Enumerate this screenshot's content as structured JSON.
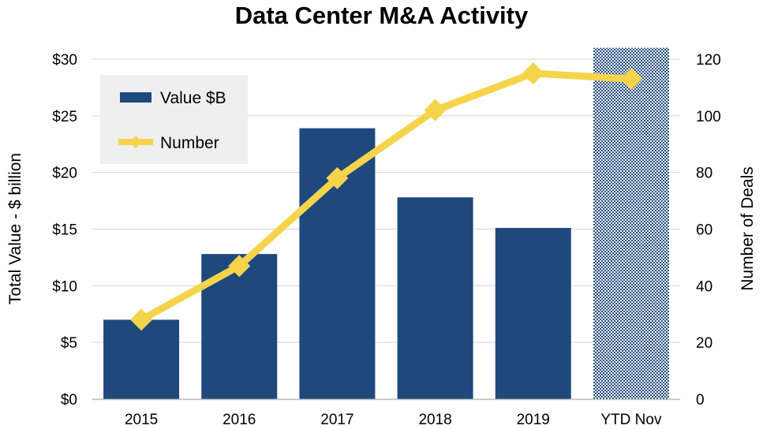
{
  "chart_data": {
    "type": "bar",
    "title": "Data Center M&A Activity",
    "categories": [
      "2015",
      "2016",
      "2017",
      "2018",
      "2019",
      "YTD Nov"
    ],
    "series": [
      {
        "name": "Value $B",
        "type": "bar",
        "axis": "left",
        "values": [
          7.0,
          12.8,
          23.9,
          17.8,
          15.1,
          31.0
        ],
        "color": "#1f497d",
        "hatched_categories": [
          "YTD Nov"
        ]
      },
      {
        "name": "Number",
        "type": "line",
        "axis": "right",
        "values": [
          28,
          47,
          78,
          102,
          115,
          113
        ],
        "color": "#f5d44c",
        "marker": "diamond"
      }
    ],
    "ylabel": "Total Value - $ billion",
    "y2label": "Number of Deals",
    "ylim": [
      0,
      30
    ],
    "y2lim": [
      0,
      120
    ],
    "yticks": [
      "$0",
      "$5",
      "$10",
      "$15",
      "$20",
      "$25",
      "$30"
    ],
    "y2ticks": [
      "0",
      "20",
      "40",
      "60",
      "80",
      "100",
      "120"
    ],
    "grid": true,
    "legend_position": "top-left",
    "legend_background": "#efefef"
  }
}
